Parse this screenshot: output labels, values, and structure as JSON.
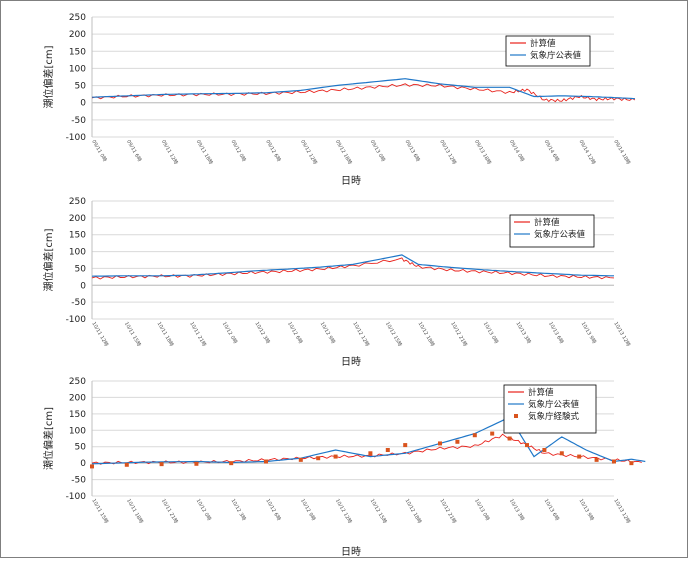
{
  "chart_data": [
    {
      "type": "line",
      "ylabel": "潮位偏差[cm]",
      "xlabel": "日時",
      "ylim": [
        -100,
        250
      ],
      "yticks": [
        250,
        200,
        150,
        100,
        50,
        0,
        -50,
        -100
      ],
      "xtick_labels": [
        "09/11 0時",
        "09/11 6時",
        "09/11 12時",
        "09/11 18時",
        "09/12 0時",
        "09/12 6時",
        "09/12 12時",
        "09/12 18時",
        "09/13 0時",
        "09/13 6時",
        "09/13 12時",
        "09/13 18時",
        "09/14 0時",
        "09/14 6時",
        "09/14 12時",
        "09/14 18時"
      ],
      "grid": "horizontal",
      "legend_position": "top-right",
      "x": [
        0,
        1,
        2,
        3,
        4,
        5,
        6,
        7,
        8,
        9,
        10,
        11,
        12,
        13,
        14,
        15
      ],
      "series": [
        {
          "name": "計算値",
          "color": "#e8211b",
          "style": "line",
          "values": [
            14,
            19,
            22,
            24,
            25,
            27,
            31,
            37,
            45,
            52,
            50,
            40,
            30,
            38,
            8,
            6,
            18,
            10,
            12,
            8
          ],
          "x": [
            0,
            1,
            2,
            3,
            4,
            5,
            6,
            7,
            8,
            9,
            10,
            11,
            12,
            12.5,
            13,
            13.5,
            14,
            14.5,
            15,
            15.6
          ]
        },
        {
          "name": "気象庁公表値",
          "color": "#1f77c8",
          "style": "line",
          "values": [
            16,
            20,
            24,
            26,
            27,
            29,
            36,
            50,
            60,
            70,
            55,
            45,
            45,
            18,
            20,
            18,
            15,
            12
          ],
          "x": [
            0,
            1,
            2,
            3,
            4,
            5,
            6,
            7,
            8,
            9,
            10,
            11,
            12,
            12.7,
            13.5,
            14.3,
            15,
            15.6
          ]
        }
      ]
    },
    {
      "type": "line",
      "ylabel": "潮位偏差[cm]",
      "xlabel": "日時",
      "ylim": [
        -100,
        250
      ],
      "yticks": [
        250,
        200,
        150,
        100,
        50,
        0,
        -50,
        -100
      ],
      "xtick_labels": [
        "10/11 12時",
        "10/11 15時",
        "10/11 18時",
        "10/11 21時",
        "10/12 0時",
        "10/12 3時",
        "10/12 6時",
        "10/12 9時",
        "10/12 12時",
        "10/12 15時",
        "10/12 18時",
        "10/12 21時",
        "10/13 0時",
        "10/13 3時",
        "10/13 6時",
        "10/13 9時",
        "10/13 12時"
      ],
      "grid": "horizontal",
      "legend_position": "top-right",
      "series": [
        {
          "name": "計算値",
          "color": "#e8211b",
          "style": "line",
          "values": [
            22,
            25,
            27,
            28,
            33,
            38,
            42,
            48,
            58,
            78,
            55,
            45,
            40,
            35,
            28,
            25,
            22
          ],
          "x": [
            0,
            1,
            2,
            3,
            4,
            5,
            6,
            7,
            8,
            9.5,
            10,
            11,
            12,
            13,
            14,
            15,
            16
          ]
        },
        {
          "name": "気象庁公表値",
          "color": "#1f77c8",
          "style": "line",
          "values": [
            27,
            28,
            28,
            30,
            36,
            43,
            48,
            54,
            62,
            90,
            62,
            53,
            46,
            40,
            35,
            30,
            28
          ],
          "x": [
            0,
            1,
            2,
            3,
            4,
            5,
            6,
            7,
            8,
            9.5,
            10,
            11,
            12,
            13,
            14,
            15,
            16
          ]
        }
      ]
    },
    {
      "type": "line",
      "ylabel": "潮位偏差[cm]",
      "xlabel": "日時",
      "ylim": [
        -100,
        250
      ],
      "yticks": [
        250,
        200,
        150,
        100,
        50,
        0,
        -50,
        -100
      ],
      "xtick_labels": [
        "10/11 15時",
        "10/11 18時",
        "10/11 21時",
        "10/12 0時",
        "10/12 3時",
        "10/12 6時",
        "10/12 9時",
        "10/12 12時",
        "10/12 15時",
        "10/12 18時",
        "10/12 21時",
        "10/13 0時",
        "10/13 3時",
        "10/13 6時",
        "10/13 9時",
        "10/13 12時"
      ],
      "grid": "horizontal",
      "legend_position": "top-right",
      "series": [
        {
          "name": "計算値",
          "color": "#e8211b",
          "style": "line",
          "values": [
            0,
            2,
            3,
            3,
            5,
            10,
            15,
            20,
            22,
            30,
            45,
            52,
            85,
            60,
            30,
            20,
            10,
            2
          ],
          "x": [
            0,
            1,
            2,
            3,
            4,
            5,
            6,
            7,
            8,
            9,
            10,
            11,
            11.8,
            12.4,
            13,
            14,
            15,
            15.8
          ]
        },
        {
          "name": "気象庁公表値",
          "color": "#1f77c8",
          "style": "line",
          "values": [
            -2,
            3,
            5,
            2,
            5,
            15,
            40,
            20,
            30,
            60,
            90,
            140,
            20,
            80,
            40,
            5,
            12,
            5
          ],
          "x": [
            0,
            1.5,
            3,
            4,
            5,
            6,
            7,
            8,
            9,
            10,
            11,
            12,
            12.7,
            13.5,
            14.2,
            15,
            15.5,
            15.9
          ]
        },
        {
          "name": "気象庁経験式",
          "color": "#d9541e",
          "style": "markers",
          "values": [
            -10,
            -5,
            -3,
            -2,
            0,
            5,
            10,
            15,
            20,
            30,
            40,
            55,
            60,
            65,
            85,
            90,
            75,
            55,
            40,
            30,
            20,
            10,
            5,
            0
          ],
          "x": [
            0,
            1,
            2,
            3,
            4,
            5,
            6,
            6.5,
            7,
            8,
            8.5,
            9,
            10,
            10.5,
            11,
            11.5,
            12,
            12.5,
            13,
            13.5,
            14,
            14.5,
            15,
            15.5
          ]
        }
      ]
    }
  ]
}
